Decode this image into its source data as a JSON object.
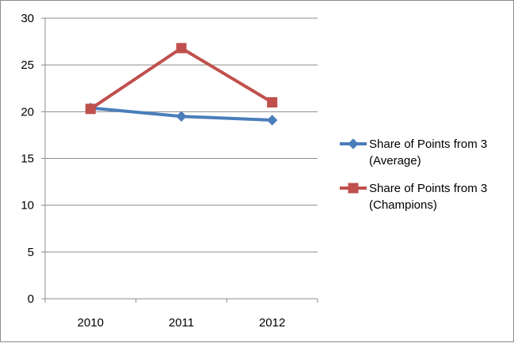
{
  "chart_data": {
    "type": "line",
    "title": "",
    "xlabel": "",
    "ylabel": "",
    "categories": [
      "2010",
      "2011",
      "2012"
    ],
    "ylim": [
      0,
      30
    ],
    "yticks": [
      0,
      5,
      10,
      15,
      20,
      25,
      30
    ],
    "grid": true,
    "legend_position": "right",
    "series": [
      {
        "name": "Share of Points from 3 (Average)",
        "legend_lines": [
          "Share of Points from 3",
          "(Average)"
        ],
        "color": "#4a7ebb",
        "marker": "diamond",
        "values": [
          20.4,
          19.5,
          19.1
        ]
      },
      {
        "name": "Share of Points from 3 (Champions)",
        "legend_lines": [
          "Share of Points from 3",
          "(Champions)"
        ],
        "color": "#c0504d",
        "marker": "square",
        "values": [
          20.3,
          26.8,
          21.0
        ]
      }
    ]
  }
}
